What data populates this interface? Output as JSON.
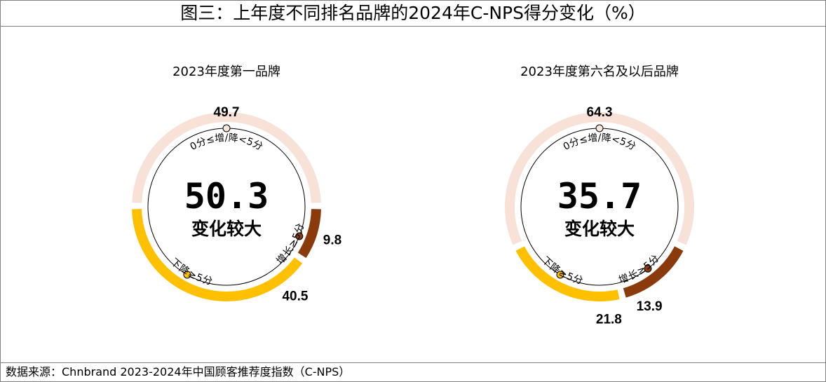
{
  "title": "图三：上年度不同排名品牌的2024年C-NPS得分变化（%）",
  "source": "数据来源：Chnbrand 2023-2024年中国顾客推荐度指数（C-NPS）",
  "colors": {
    "small_change": "#F8E1D6",
    "increase": "#8B3A0B",
    "decrease": "#FFC000",
    "border": "#808080"
  },
  "chart_data": [
    {
      "type": "pie",
      "subtitle": "2023年度第一品牌",
      "center_value": "50.3",
      "center_label": "变化较大",
      "slices": [
        {
          "label": "0分≤增/降<5分",
          "value": 49.7,
          "display": "49.7"
        },
        {
          "label": "增长≥5分",
          "value": 9.8,
          "display": "9.8"
        },
        {
          "label": "下降≥5分",
          "value": 40.5,
          "display": "40.5"
        }
      ]
    },
    {
      "type": "pie",
      "subtitle": "2023年度第六名及以后品牌",
      "center_value": "35.7",
      "center_label": "变化较大",
      "slices": [
        {
          "label": "0分≤增/降<5分",
          "value": 64.3,
          "display": "64.3"
        },
        {
          "label": "增长≥5分",
          "value": 13.9,
          "display": "13.9"
        },
        {
          "label": "下降≥5分",
          "value": 21.8,
          "display": "21.8"
        }
      ]
    }
  ]
}
